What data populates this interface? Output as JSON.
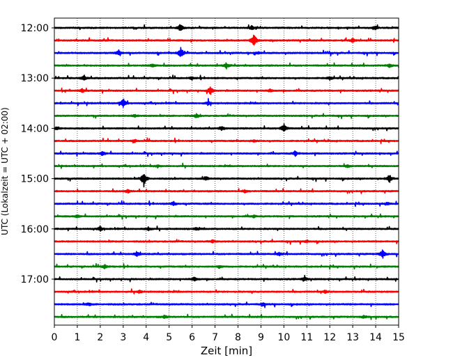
{
  "chart_data": {
    "type": "line",
    "title": "",
    "xlabel": "Zeit  [min]",
    "ylabel": "UTC (Lokalzeit = UTC + 02:00)",
    "xlim": [
      0,
      15
    ],
    "xticks": [
      0,
      1,
      2,
      3,
      4,
      5,
      6,
      7,
      8,
      9,
      10,
      11,
      12,
      13,
      14,
      15
    ],
    "xtick_labels": [
      "0",
      "1",
      "2",
      "3",
      "4",
      "5",
      "6",
      "7",
      "8",
      "9",
      "10",
      "11",
      "12",
      "13",
      "14",
      "15"
    ],
    "ytick_labels": [
      "12:00",
      "13:00",
      "14:00",
      "15:00",
      "16:00",
      "17:00"
    ],
    "grid": "x-dotted",
    "line_colors": [
      "#000000",
      "#ff0000",
      "#0000ff",
      "#008000"
    ],
    "trace_interval_min": 15,
    "traces": [
      {
        "start": "12:00",
        "color": "#000000",
        "events": [
          [
            5.5,
            7
          ],
          [
            8.6,
            3
          ],
          [
            14.0,
            3
          ]
        ]
      },
      {
        "start": "12:15",
        "color": "#ff0000",
        "events": [
          [
            8.7,
            11
          ],
          [
            13.0,
            3
          ]
        ]
      },
      {
        "start": "12:30",
        "color": "#0000ff",
        "events": [
          [
            5.5,
            8
          ],
          [
            2.8,
            4
          ],
          [
            8.9,
            2
          ]
        ]
      },
      {
        "start": "12:45",
        "color": "#008000",
        "events": [
          [
            7.5,
            4
          ],
          [
            4.3,
            3
          ],
          [
            14.6,
            3
          ]
        ]
      },
      {
        "start": "13:00",
        "color": "#000000",
        "events": [
          [
            1.3,
            4
          ],
          [
            12.0,
            3
          ],
          [
            6.0,
            2
          ]
        ]
      },
      {
        "start": "13:15",
        "color": "#ff0000",
        "events": [
          [
            6.8,
            6
          ],
          [
            1.2,
            3
          ],
          [
            9.4,
            2
          ]
        ]
      },
      {
        "start": "13:30",
        "color": "#0000ff",
        "events": [
          [
            3.0,
            7
          ],
          [
            6.7,
            3
          ]
        ]
      },
      {
        "start": "13:45",
        "color": "#008000",
        "events": [
          [
            6.2,
            3
          ],
          [
            3.5,
            2
          ]
        ]
      },
      {
        "start": "14:00",
        "color": "#000000",
        "events": [
          [
            10.0,
            8
          ],
          [
            0.1,
            3
          ],
          [
            7.3,
            3
          ]
        ]
      },
      {
        "start": "14:15",
        "color": "#ff0000",
        "events": [
          [
            3.5,
            2
          ],
          [
            8.7,
            2
          ]
        ]
      },
      {
        "start": "14:30",
        "color": "#0000ff",
        "events": [
          [
            10.5,
            4
          ],
          [
            2.1,
            3
          ]
        ]
      },
      {
        "start": "14:45",
        "color": "#008000",
        "events": [
          [
            4.5,
            2
          ],
          [
            12.8,
            2
          ]
        ]
      },
      {
        "start": "15:00",
        "color": "#000000",
        "events": [
          [
            3.9,
            12
          ],
          [
            14.6,
            7
          ],
          [
            6.6,
            3
          ]
        ]
      },
      {
        "start": "15:15",
        "color": "#ff0000",
        "events": [
          [
            3.2,
            3
          ],
          [
            8.3,
            2
          ]
        ]
      },
      {
        "start": "15:30",
        "color": "#0000ff",
        "events": [
          [
            5.2,
            3
          ],
          [
            14.5,
            2
          ]
        ]
      },
      {
        "start": "15:45",
        "color": "#008000",
        "events": [
          [
            1.0,
            2
          ],
          [
            8.7,
            2
          ]
        ]
      },
      {
        "start": "16:00",
        "color": "#000000",
        "events": [
          [
            4.1,
            3
          ],
          [
            2.0,
            3
          ],
          [
            6.2,
            2
          ]
        ]
      },
      {
        "start": "16:15",
        "color": "#ff0000",
        "events": [
          [
            6.9,
            2
          ],
          [
            11.0,
            2
          ]
        ]
      },
      {
        "start": "16:30",
        "color": "#0000ff",
        "events": [
          [
            14.3,
            7
          ],
          [
            3.6,
            4
          ],
          [
            9.8,
            2
          ]
        ]
      },
      {
        "start": "16:45",
        "color": "#008000",
        "events": [
          [
            2.2,
            3
          ],
          [
            7.2,
            2
          ]
        ]
      },
      {
        "start": "17:00",
        "color": "#000000",
        "events": [
          [
            6.1,
            3
          ],
          [
            10.9,
            3
          ]
        ]
      },
      {
        "start": "17:15",
        "color": "#ff0000",
        "events": [
          [
            11.8,
            2
          ],
          [
            3.7,
            2
          ]
        ]
      },
      {
        "start": "17:30",
        "color": "#0000ff",
        "events": [
          [
            1.5,
            2
          ],
          [
            9.1,
            2
          ]
        ]
      },
      {
        "start": "17:45",
        "color": "#008000",
        "events": [
          [
            4.8,
            2
          ],
          [
            13.5,
            2
          ]
        ]
      }
    ]
  }
}
